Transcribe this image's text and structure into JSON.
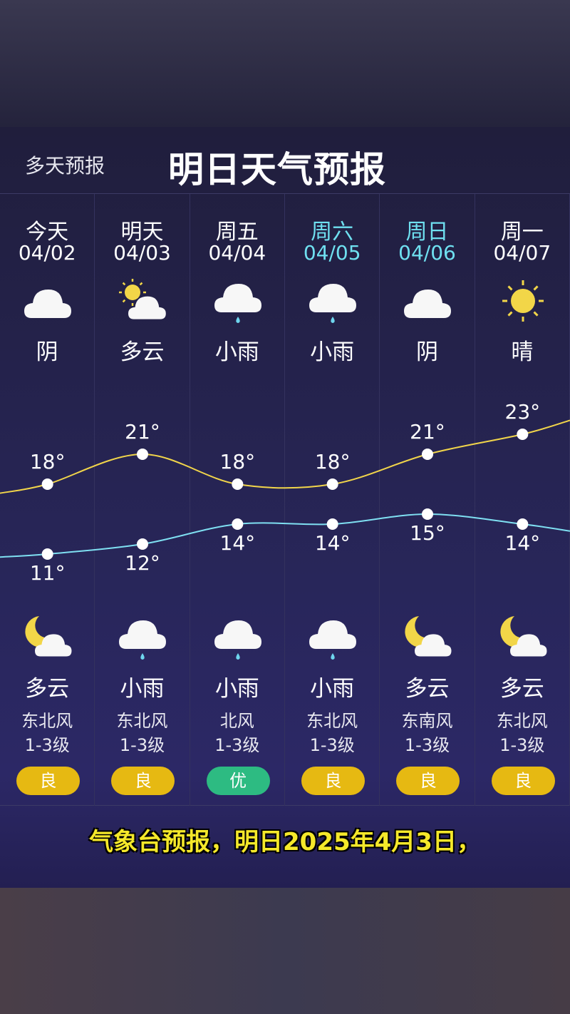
{
  "header": {
    "multi_day_label": "多天预报",
    "title": "明日天气预报"
  },
  "colors": {
    "high_line": "#f1d54a",
    "low_line": "#7fe0f2",
    "weekend": "#6fe0f0",
    "aqi_good": "#e6b912",
    "aqi_excellent": "#2dbb82"
  },
  "days": [
    {
      "day": "今天",
      "date": "04/02",
      "day_icon": "cloud-icon",
      "day_cond": "阴",
      "high": 18,
      "low": 11,
      "high_label": "18°",
      "low_label": "11°",
      "night_icon": "moon-cloud-icon",
      "night_cond": "多云",
      "wind_dir": "东北风",
      "wind_level": "1-3级",
      "aqi": "良",
      "aqi_level": "good",
      "weekend": false
    },
    {
      "day": "明天",
      "date": "04/03",
      "day_icon": "sun-cloud-icon",
      "day_cond": "多云",
      "high": 21,
      "low": 12,
      "high_label": "21°",
      "low_label": "12°",
      "night_icon": "rain-cloud-icon",
      "night_cond": "小雨",
      "wind_dir": "东北风",
      "wind_level": "1-3级",
      "aqi": "良",
      "aqi_level": "good",
      "weekend": false
    },
    {
      "day": "周五",
      "date": "04/04",
      "day_icon": "rain-cloud-icon",
      "day_cond": "小雨",
      "high": 18,
      "low": 14,
      "high_label": "18°",
      "low_label": "14°",
      "night_icon": "rain-cloud-icon",
      "night_cond": "小雨",
      "wind_dir": "北风",
      "wind_level": "1-3级",
      "aqi": "优",
      "aqi_level": "excellent",
      "weekend": false
    },
    {
      "day": "周六",
      "date": "04/05",
      "day_icon": "rain-cloud-icon",
      "day_cond": "小雨",
      "high": 18,
      "low": 14,
      "high_label": "18°",
      "low_label": "14°",
      "night_icon": "rain-cloud-icon",
      "night_cond": "小雨",
      "wind_dir": "东北风",
      "wind_level": "1-3级",
      "aqi": "良",
      "aqi_level": "good",
      "weekend": true
    },
    {
      "day": "周日",
      "date": "04/06",
      "day_icon": "cloud-icon",
      "day_cond": "阴",
      "high": 21,
      "low": 15,
      "high_label": "21°",
      "low_label": "15°",
      "night_icon": "moon-cloud-icon",
      "night_cond": "多云",
      "wind_dir": "东南风",
      "wind_level": "1-3级",
      "aqi": "良",
      "aqi_level": "good",
      "weekend": true
    },
    {
      "day": "周一",
      "date": "04/07",
      "day_icon": "sun-icon",
      "day_cond": "晴",
      "high": 23,
      "low": 14,
      "high_label": "23°",
      "low_label": "14°",
      "night_icon": "moon-cloud-icon",
      "night_cond": "多云",
      "wind_dir": "东北风",
      "wind_level": "1-3级",
      "aqi": "良",
      "aqi_level": "good",
      "weekend": false
    }
  ],
  "caption": "气象台预报，明日2025年4月3日，"
}
